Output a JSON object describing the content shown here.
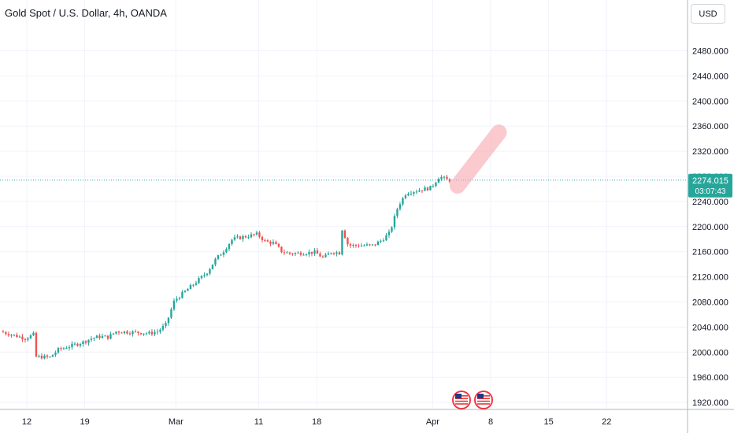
{
  "chart_title": "Gold Spot / U.S. Dollar, 4h, OANDA",
  "currency_button": "USD",
  "price_label": {
    "price": "2274.015",
    "countdown": "03:07:43"
  },
  "colors": {
    "up": "#26a69a",
    "down": "#ef5350",
    "price_tag": "#26a69a",
    "projection": "#f7a8b0",
    "grid": "#f0f3fa"
  },
  "event_icons": [
    "us-flag-icon",
    "us-flag-icon"
  ],
  "chart_data": {
    "type": "candlestick",
    "title": "Gold Spot / U.S. Dollar, 4h, OANDA",
    "xlabel": "",
    "ylabel": "",
    "ylim": [
      1910,
      2530
    ],
    "x_ticks": [
      "12",
      "19",
      "Mar",
      "11",
      "18",
      "Apr",
      "8",
      "15",
      "22"
    ],
    "y_ticks": [
      "1920.000",
      "1960.000",
      "2000.000",
      "2040.000",
      "2080.000",
      "2120.000",
      "2160.000",
      "2200.000",
      "2240.000",
      "2280.000",
      "2320.000",
      "2360.000",
      "2400.000",
      "2440.000",
      "2480.000"
    ],
    "grid": true,
    "last_price": 2274.015,
    "price_path": [
      [
        "2024-02-09",
        2033
      ],
      [
        "2024-02-12",
        2022
      ],
      [
        "2024-02-13",
        2028
      ],
      [
        "2024-02-13",
        1993
      ],
      [
        "2024-02-15",
        1992
      ],
      [
        "2024-02-16",
        2004
      ],
      [
        "2024-02-19",
        2016
      ],
      [
        "2024-02-20",
        2022
      ],
      [
        "2024-02-21",
        2025
      ],
      [
        "2024-02-22",
        2024
      ],
      [
        "2024-02-23",
        2033
      ],
      [
        "2024-02-26",
        2031
      ],
      [
        "2024-02-27",
        2030
      ],
      [
        "2024-02-28",
        2033
      ],
      [
        "2024-02-29",
        2044
      ],
      [
        "2024-03-01",
        2082
      ],
      [
        "2024-03-04",
        2116
      ],
      [
        "2024-03-05",
        2128
      ],
      [
        "2024-03-06",
        2148
      ],
      [
        "2024-03-07",
        2162
      ],
      [
        "2024-03-08",
        2180
      ],
      [
        "2024-03-11",
        2188
      ],
      [
        "2024-03-12",
        2176
      ],
      [
        "2024-03-13",
        2174
      ],
      [
        "2024-03-14",
        2160
      ],
      [
        "2024-03-15",
        2157
      ],
      [
        "2024-03-18",
        2159
      ],
      [
        "2024-03-19",
        2150
      ],
      [
        "2024-03-20",
        2160
      ],
      [
        "2024-03-21",
        2158
      ],
      [
        "2024-03-21",
        2205
      ],
      [
        "2024-03-22",
        2170
      ],
      [
        "2024-03-25",
        2170
      ],
      [
        "2024-03-26",
        2178
      ],
      [
        "2024-03-27",
        2190
      ],
      [
        "2024-03-28",
        2232
      ],
      [
        "2024-03-29",
        2254
      ],
      [
        "2024-04-01",
        2262
      ],
      [
        "2024-04-02",
        2280
      ],
      [
        "2024-04-03",
        2274
      ]
    ],
    "projection": {
      "start": [
        "2024-04-04",
        2265
      ],
      "end": [
        "2024-04-09",
        2350
      ]
    }
  }
}
